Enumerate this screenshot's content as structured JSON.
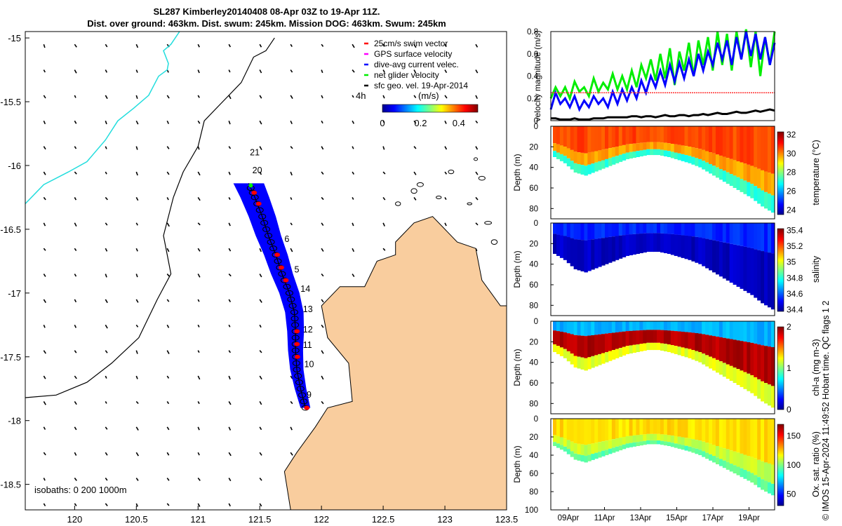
{
  "header": {
    "title_line1": "SL287 Kimberley20140408 08-Apr 03Z to 19-Apr 11Z.",
    "title_line2": "Dist. over ground: 463km. Dist. swum: 245km. Mission DOG: 463km. Swum: 245km"
  },
  "credit": "© IMOS 15-Apr-2024 11:49:52 Hobart time. QC flags 1  2",
  "colors": {
    "land": "#f9cd9e",
    "track": "#0000ff",
    "swim_vector": "#ff0000",
    "gps_velocity": "#ff00ff",
    "dive_avg": "#0000ff",
    "net_velocity": "#00ee00",
    "coast_trace": "#22dddd"
  },
  "chart_data": [
    {
      "type": "map",
      "xlim": [
        119.6,
        123.5
      ],
      "ylim": [
        -18.7,
        -14.95
      ],
      "x_ticks": [
        "120",
        "120.5",
        "121",
        "121.5",
        "122",
        "122.5",
        "123",
        "123.5"
      ],
      "y_ticks": [
        "-15",
        "-15.5",
        "-16",
        "-16.5",
        "-17",
        "-17.5",
        "-18",
        "-18.5"
      ],
      "legend": {
        "position": "top-right",
        "items": [
          {
            "label": "25cm/s swim vector",
            "color": "#ff0000"
          },
          {
            "label": "GPS surface velocity",
            "color": "#ff00ff"
          },
          {
            "label": "dive-avg current velec.",
            "color": "#0000ff"
          },
          {
            "label": "net glider velocity",
            "color": "#00ee00"
          },
          {
            "label": "sfc geo. vel. 19-Apr-2014",
            "color": "#000000"
          }
        ]
      },
      "interval_label": "4h",
      "colorbar": {
        "label": "(m/s)",
        "ticks": [
          "0",
          "0.2",
          "0.4"
        ],
        "range": [
          0,
          0.5
        ]
      },
      "isobaths_label": "isobaths: 0   200  1000m",
      "day_labels": [
        {
          "label": "9",
          "lon": 121.88,
          "lat": -17.82
        },
        {
          "label": "10",
          "lon": 121.86,
          "lat": -17.58
        },
        {
          "label": "11",
          "lon": 121.85,
          "lat": -17.43
        },
        {
          "label": "12",
          "lon": 121.85,
          "lat": -17.31
        },
        {
          "label": "13",
          "lon": 121.85,
          "lat": -17.15
        },
        {
          "label": "14",
          "lon": 121.83,
          "lat": -16.99
        },
        {
          "label": "5",
          "lon": 121.78,
          "lat": -16.84
        },
        {
          "label": "6",
          "lon": 121.7,
          "lat": -16.6
        },
        {
          "label": "20",
          "lon": 121.44,
          "lat": -16.06
        },
        {
          "label": "21",
          "lon": 121.42,
          "lat": -15.92
        }
      ],
      "glider_track": [
        [
          121.87,
          -17.9
        ],
        [
          121.83,
          -17.75
        ],
        [
          121.8,
          -17.6
        ],
        [
          121.79,
          -17.45
        ],
        [
          121.79,
          -17.3
        ],
        [
          121.78,
          -17.15
        ],
        [
          121.74,
          -17.0
        ],
        [
          121.68,
          -16.85
        ],
        [
          121.63,
          -16.7
        ],
        [
          121.57,
          -16.55
        ],
        [
          121.52,
          -16.4
        ],
        [
          121.46,
          -16.25
        ],
        [
          121.41,
          -16.14
        ]
      ]
    },
    {
      "type": "line",
      "ylabel": "velocity magnitude (m/s)",
      "ylim": [
        0,
        0.8
      ],
      "y_ticks": [
        "0",
        "0.2",
        "0.4",
        "0.6",
        "0.8"
      ],
      "series": [
        {
          "color": "#00ee00",
          "values": [
            0.2,
            0.3,
            0.22,
            0.3,
            0.2,
            0.35,
            0.26,
            0.3,
            0.22,
            0.38,
            0.26,
            0.34,
            0.28,
            0.42,
            0.28,
            0.4,
            0.28,
            0.45,
            0.3,
            0.5,
            0.38,
            0.55,
            0.36,
            0.6,
            0.38,
            0.65,
            0.32,
            0.62,
            0.45,
            0.7,
            0.4,
            0.72,
            0.5,
            0.75,
            0.45,
            0.8,
            0.5,
            0.78,
            0.45,
            0.8,
            0.55,
            0.82,
            0.48,
            0.8,
            0.4,
            0.75,
            0.5,
            0.8
          ]
        },
        {
          "color": "#0000ff",
          "values": [
            0.1,
            0.25,
            0.15,
            0.2,
            0.12,
            0.22,
            0.1,
            0.18,
            0.12,
            0.22,
            0.15,
            0.2,
            0.12,
            0.26,
            0.15,
            0.28,
            0.18,
            0.3,
            0.2,
            0.36,
            0.25,
            0.4,
            0.3,
            0.45,
            0.32,
            0.5,
            0.35,
            0.52,
            0.38,
            0.55,
            0.4,
            0.6,
            0.45,
            0.62,
            0.5,
            0.7,
            0.55,
            0.72,
            0.5,
            0.75,
            0.55,
            0.8,
            0.58,
            0.78,
            0.55,
            0.75,
            0.5,
            0.7
          ]
        },
        {
          "color": "#ff3333",
          "values": [
            0.25,
            0.25,
            0.25,
            0.25,
            0.25,
            0.25,
            0.25,
            0.25,
            0.25,
            0.25,
            0.25,
            0.25,
            0.25,
            0.25,
            0.25,
            0.25,
            0.25,
            0.25,
            0.25,
            0.25,
            0.25,
            0.25,
            0.25,
            0.25,
            0.25,
            0.25,
            0.25,
            0.25,
            0.25,
            0.25,
            0.25,
            0.25,
            0.25,
            0.25,
            0.25,
            0.25,
            0.25,
            0.25,
            0.25,
            0.25,
            0.25,
            0.25,
            0.25,
            0.25,
            0.25,
            0.25,
            0.25,
            0.25
          ]
        },
        {
          "color": "#000000",
          "values": [
            0.02,
            0.02,
            0.01,
            0.01,
            0.01,
            0.02,
            0.01,
            0.01,
            0.01,
            0.02,
            0.02,
            0.02,
            0.03,
            0.03,
            0.03,
            0.03,
            0.03,
            0.04,
            0.04,
            0.03,
            0.04,
            0.04,
            0.03,
            0.04,
            0.05,
            0.04,
            0.04,
            0.05,
            0.05,
            0.04,
            0.05,
            0.05,
            0.06,
            0.05,
            0.06,
            0.07,
            0.06,
            0.06,
            0.07,
            0.08,
            0.07,
            0.07,
            0.08,
            0.09,
            0.08,
            0.09,
            0.1,
            0.09
          ]
        }
      ]
    },
    {
      "type": "heatmap",
      "ylabel": "Depth (m)",
      "cblabel": "temperature (°C)",
      "clim": [
        23.5,
        32.3
      ],
      "cb_ticks": [
        "24",
        "26",
        "28",
        "30",
        "32"
      ],
      "y_ticks": [
        "0",
        "20",
        "40",
        "60",
        "80"
      ],
      "profile_depth": [
        30,
        36,
        45,
        48,
        44,
        40,
        36,
        32,
        30,
        28,
        28,
        30,
        33,
        36,
        40,
        46,
        52,
        58,
        64,
        70,
        78,
        84
      ],
      "bands": [
        {
          "to": 0.55,
          "value": 30.6
        },
        {
          "to": 0.8,
          "value": 29.8
        },
        {
          "to": 1.0,
          "value": 27.2
        }
      ]
    },
    {
      "type": "heatmap",
      "ylabel": "Depth (m)",
      "cblabel": "salinity",
      "clim": [
        34.38,
        35.42
      ],
      "cb_ticks": [
        "34.4",
        "34.6",
        "34.8",
        "35",
        "35.2",
        "35.4"
      ],
      "y_ticks": [
        "0",
        "20",
        "40",
        "60",
        "80"
      ],
      "profile_depth": [
        30,
        36,
        45,
        48,
        44,
        40,
        36,
        32,
        30,
        28,
        28,
        30,
        33,
        36,
        40,
        46,
        52,
        58,
        64,
        70,
        78,
        84
      ],
      "bands": [
        {
          "to": 0.35,
          "value": 34.55
        },
        {
          "to": 1.0,
          "value": 34.45
        }
      ]
    },
    {
      "type": "heatmap",
      "ylabel": "Depth (m)",
      "cblabel": "chl-a (mg m-3)",
      "clim": [
        0,
        2
      ],
      "cb_ticks": [
        "0",
        "1",
        "2"
      ],
      "y_ticks": [
        "0",
        "20",
        "40",
        "60",
        "80"
      ],
      "profile_depth": [
        30,
        36,
        45,
        48,
        44,
        40,
        36,
        32,
        30,
        28,
        28,
        30,
        33,
        36,
        40,
        46,
        52,
        58,
        64,
        70,
        78,
        84
      ],
      "bands": [
        {
          "to": 0.3,
          "value": 0.6
        },
        {
          "to": 0.75,
          "value": 1.9
        },
        {
          "to": 1.0,
          "value": 1.2
        }
      ]
    },
    {
      "type": "heatmap",
      "ylabel": "Depth (m)",
      "cblabel": "Ox. sat. ratio (%)",
      "clim": [
        30,
        170
      ],
      "cb_ticks": [
        "50",
        "100",
        "150"
      ],
      "y_ticks": [
        "0",
        "20",
        "40",
        "60",
        "80",
        "100"
      ],
      "x_ticks": [
        "09Apr",
        "11Apr",
        "13Apr",
        "15Apr",
        "17Apr",
        "19Apr"
      ],
      "profile_depth": [
        30,
        36,
        45,
        48,
        44,
        40,
        36,
        32,
        30,
        28,
        28,
        30,
        33,
        36,
        40,
        46,
        52,
        58,
        64,
        70,
        78,
        84
      ],
      "bands": [
        {
          "to": 0.6,
          "value": 122
        },
        {
          "to": 0.85,
          "value": 110
        },
        {
          "to": 1.0,
          "value": 95
        }
      ]
    }
  ]
}
